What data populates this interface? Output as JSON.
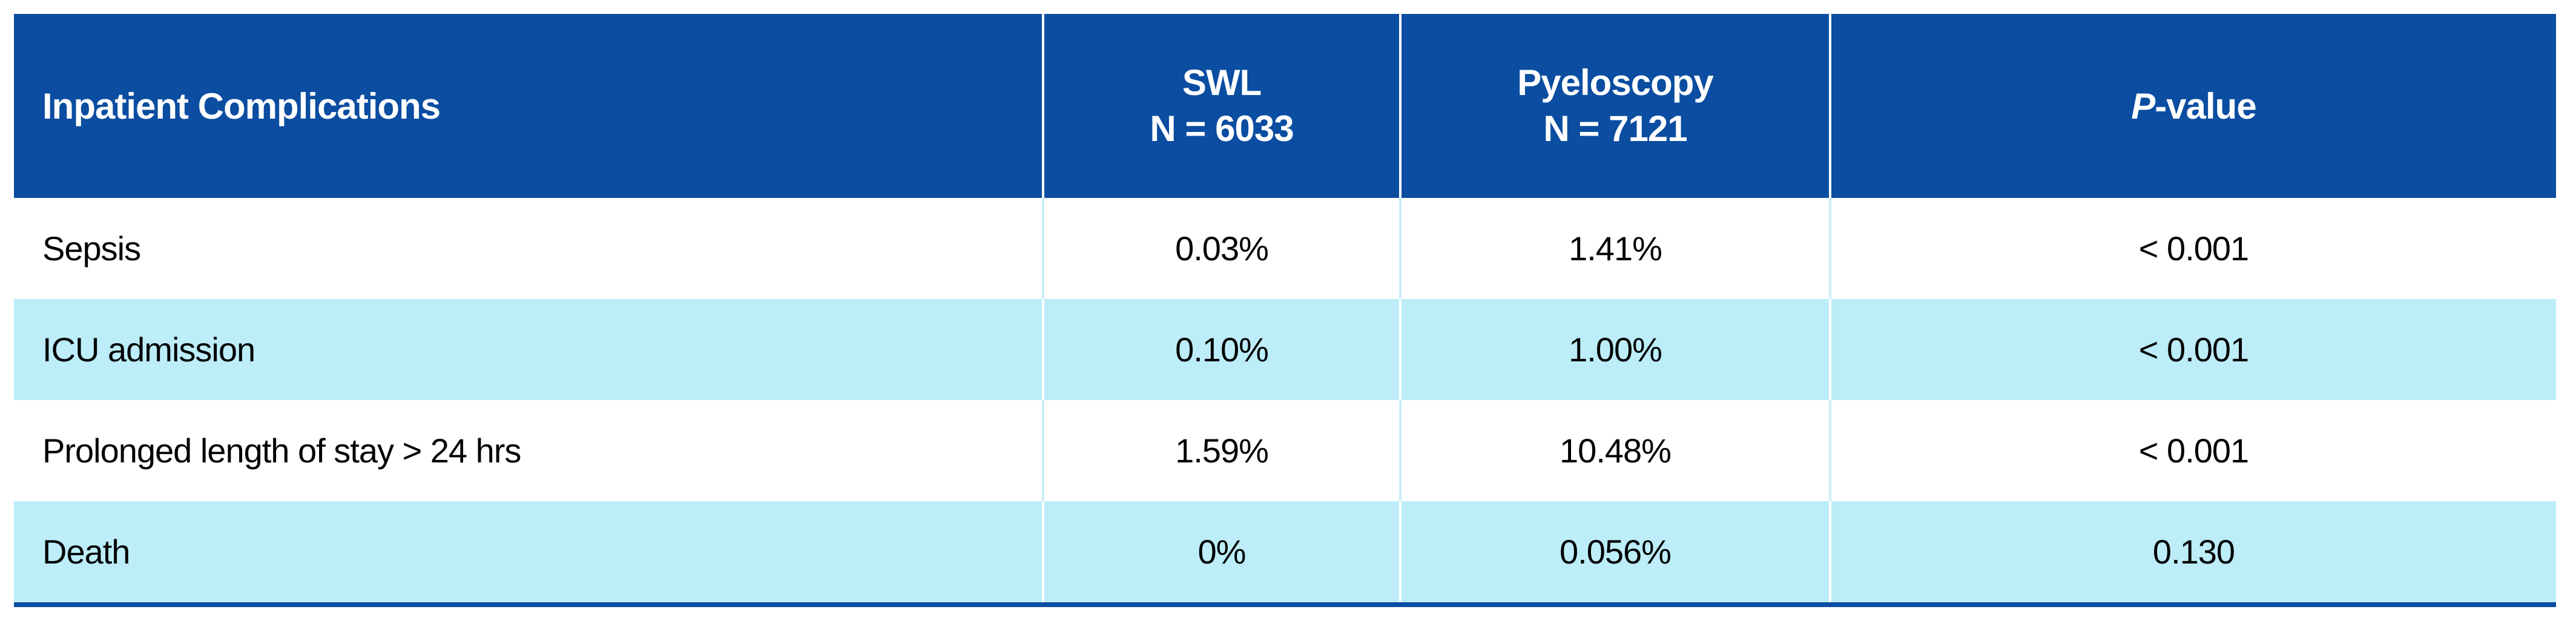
{
  "chart_data": {
    "type": "table",
    "title": "Inpatient Complications",
    "columns": [
      {
        "label": "Inpatient Complications"
      },
      {
        "line1": "SWL",
        "line2": "N = 6033"
      },
      {
        "line1": "Pyeloscopy",
        "line2": "N = 7121"
      },
      {
        "italic": "P",
        "rest": "-value"
      }
    ],
    "rows": [
      {
        "label": "Sepsis",
        "swl": "0.03%",
        "pyeloscopy": "1.41%",
        "p_value": "< 0.001"
      },
      {
        "label": "ICU admission",
        "swl": "0.10%",
        "pyeloscopy": "1.00%",
        "p_value": "< 0.001"
      },
      {
        "label": "Prolonged length of stay > 24 hrs",
        "swl": "1.59%",
        "pyeloscopy": "10.48%",
        "p_value": "< 0.001"
      },
      {
        "label": "Death",
        "swl": "0%",
        "pyeloscopy": "0.056%",
        "p_value": "0.130"
      }
    ],
    "colors": {
      "header_bg": "#0A4DA1",
      "header_text": "#FFFFFF",
      "row_white_bg": "#FFFFFF",
      "row_alt_bg": "#BCEDF9",
      "divider_on_white_rows": "#C9EFFA",
      "divider_on_colored_rows": "#FFFFFF",
      "bottom_rule": "#0A4DA1",
      "body_text": "#000000"
    }
  }
}
